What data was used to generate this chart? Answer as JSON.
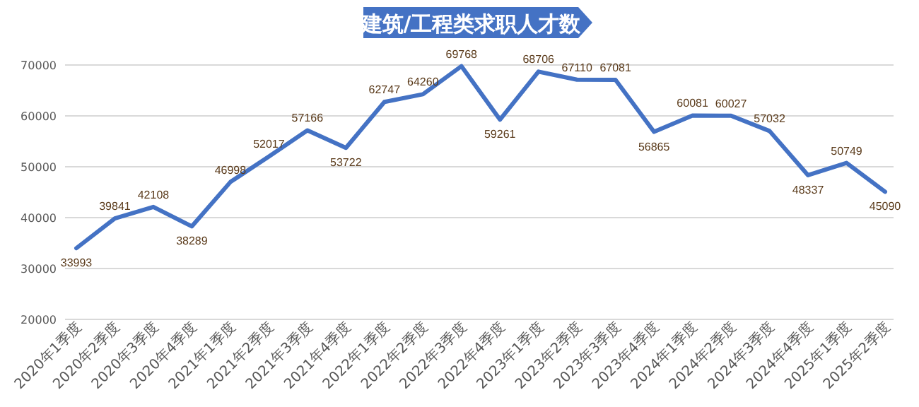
{
  "chart_data": {
    "type": "line",
    "title": "建筑/工程类求职人才数",
    "categories": [
      "2020年1季度",
      "2020年2季度",
      "2020年3季度",
      "2020年4季度",
      "2021年1季度",
      "2021年2季度",
      "2021年3季度",
      "2021年4季度",
      "2022年1季度",
      "2022年2季度",
      "2022年3季度",
      "2022年4季度",
      "2023年1季度",
      "2023年2季度",
      "2023年3季度",
      "2023年4季度",
      "2024年1季度",
      "2024年2季度",
      "2024年3季度",
      "2024年4季度",
      "2025年1季度",
      "2025年2季度"
    ],
    "series": [
      {
        "color": "#4472c4",
        "values": [
          33993,
          39841,
          42108,
          38289,
          46998,
          52017,
          57166,
          53722,
          62747,
          64260,
          69768,
          59261,
          68706,
          67110,
          67081,
          56865,
          60081,
          60027,
          57032,
          48337,
          50749,
          45090
        ]
      }
    ],
    "ylim": [
      20000,
      70000
    ],
    "yticks": [
      20000,
      30000,
      40000,
      50000,
      60000,
      70000
    ],
    "grid": "y",
    "data_labels": true,
    "marker": "none",
    "line_style": "solid"
  }
}
